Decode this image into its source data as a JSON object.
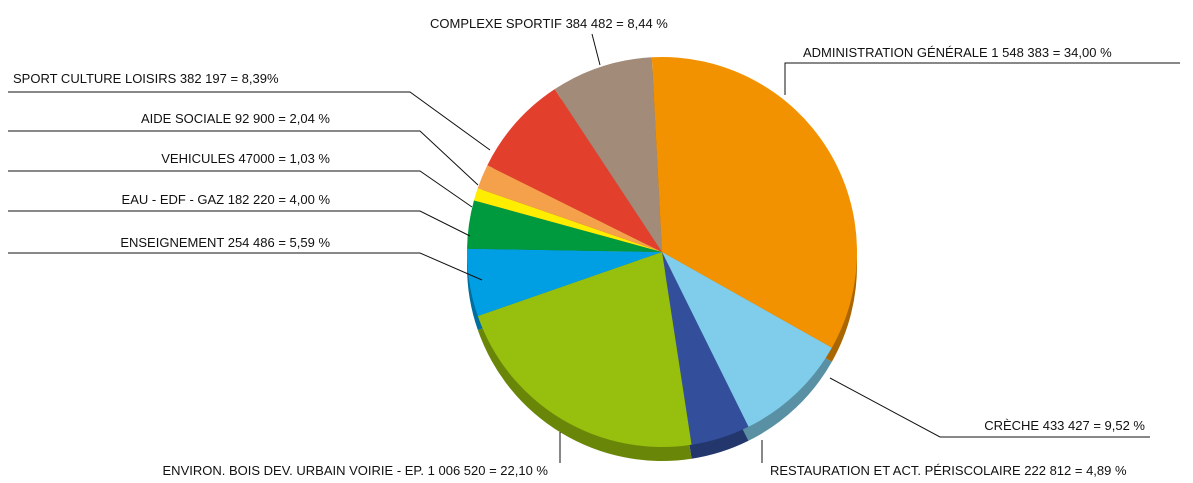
{
  "chart_data": {
    "type": "pie",
    "categories": [
      "ADMINISTRATION GÉNÉRALE 1 548 383 = 34,00 %",
      "CRÈCHE 433 427 = 9,52 %",
      "RESTAURATION ET ACT. PÉRISCOLAIRE 222 812 = 4,89 %",
      "ENVIRON. BOIS DEV. URBAIN VOIRIE - EP. 1 006 520 = 22,10 %",
      "ENSEIGNEMENT 254 486 = 5,59 %",
      "EAU - EDF - GAZ 182 220 = 4,00 %",
      "VEHICULES 47000 = 1,03 %",
      "AIDE SOCIALE 92 900 = 2,04 %",
      "SPORT CULTURE LOISIRS 382 197 = 8,39%",
      "COMPLEXE SPORTIF 384 482 = 8,44 %"
    ],
    "values": [
      34.0,
      9.52,
      4.89,
      22.1,
      5.59,
      4.0,
      1.03,
      2.04,
      8.39,
      8.44
    ],
    "colors": [
      "#f39200",
      "#7fcdea",
      "#334e9b",
      "#97bf0d",
      "#009fe3",
      "#009a3e",
      "#ffed00",
      "#f5a04a",
      "#e33f2d",
      "#a38b7a"
    ]
  }
}
